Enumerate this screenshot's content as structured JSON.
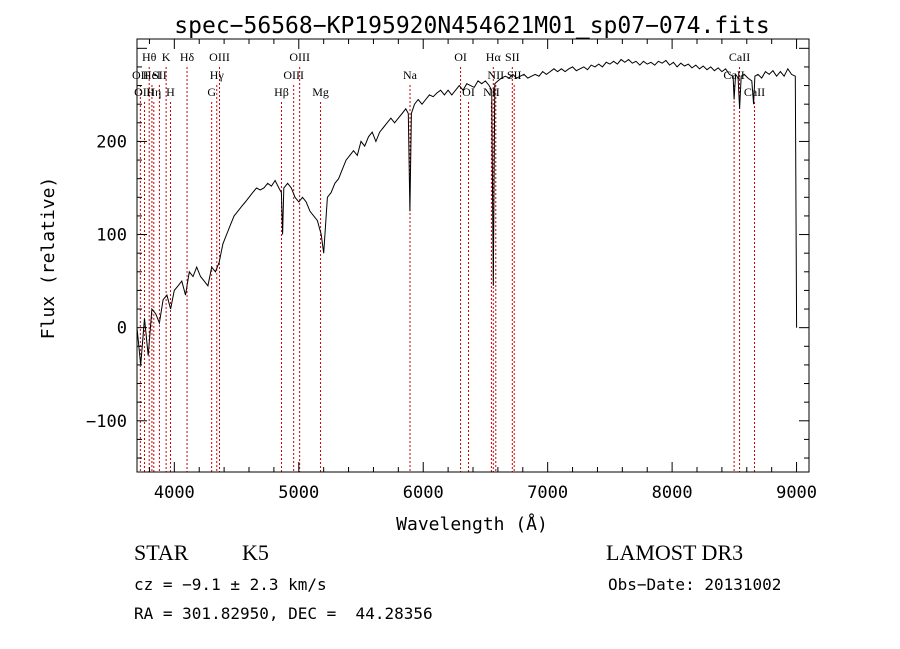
{
  "chart_data": {
    "type": "line",
    "title": "spec−56568−KP195920N454621M01_sp07−074.fits",
    "xlabel": "Wavelength (Å)",
    "ylabel": "Flux (relative)",
    "xlim": [
      3700,
      9100
    ],
    "ylim": [
      -155,
      310
    ],
    "xticks": [
      {
        "value": 4000,
        "label": "4000"
      },
      {
        "value": 5000,
        "label": "5000"
      },
      {
        "value": 6000,
        "label": "6000"
      },
      {
        "value": 7000,
        "label": "7000"
      },
      {
        "value": 8000,
        "label": "8000"
      },
      {
        "value": 9000,
        "label": "9000"
      }
    ],
    "yticks": [
      {
        "value": -100,
        "label": "−100"
      },
      {
        "value": 0,
        "label": "0"
      },
      {
        "value": 100,
        "label": "100"
      },
      {
        "value": 200,
        "label": "200"
      }
    ],
    "line_color": "#000000",
    "marker_color": "#cc0000",
    "series": [
      {
        "values": [
          [
            3700,
            0
          ],
          [
            3730,
            -40
          ],
          [
            3760,
            10
          ],
          [
            3790,
            -30
          ],
          [
            3820,
            20
          ],
          [
            3850,
            15
          ],
          [
            3880,
            5
          ],
          [
            3910,
            30
          ],
          [
            3940,
            35
          ],
          [
            3970,
            20
          ],
          [
            4000,
            40
          ],
          [
            4030,
            45
          ],
          [
            4060,
            50
          ],
          [
            4090,
            35
          ],
          [
            4120,
            60
          ],
          [
            4150,
            55
          ],
          [
            4180,
            65
          ],
          [
            4210,
            55
          ],
          [
            4240,
            50
          ],
          [
            4270,
            45
          ],
          [
            4300,
            65
          ],
          [
            4330,
            60
          ],
          [
            4360,
            70
          ],
          [
            4390,
            90
          ],
          [
            4420,
            100
          ],
          [
            4450,
            110
          ],
          [
            4480,
            120
          ],
          [
            4510,
            125
          ],
          [
            4540,
            130
          ],
          [
            4570,
            135
          ],
          [
            4600,
            140
          ],
          [
            4630,
            145
          ],
          [
            4660,
            150
          ],
          [
            4690,
            148
          ],
          [
            4720,
            150
          ],
          [
            4750,
            155
          ],
          [
            4780,
            152
          ],
          [
            4810,
            158
          ],
          [
            4840,
            150
          ],
          [
            4860,
            145
          ],
          [
            4870,
            100
          ],
          [
            4880,
            150
          ],
          [
            4910,
            155
          ],
          [
            4940,
            150
          ],
          [
            4970,
            140
          ],
          [
            5000,
            135
          ],
          [
            5030,
            140
          ],
          [
            5060,
            135
          ],
          [
            5090,
            125
          ],
          [
            5120,
            120
          ],
          [
            5150,
            115
          ],
          [
            5180,
            100
          ],
          [
            5200,
            80
          ],
          [
            5230,
            140
          ],
          [
            5260,
            145
          ],
          [
            5290,
            155
          ],
          [
            5320,
            160
          ],
          [
            5350,
            170
          ],
          [
            5380,
            180
          ],
          [
            5410,
            185
          ],
          [
            5440,
            190
          ],
          [
            5470,
            185
          ],
          [
            5500,
            200
          ],
          [
            5530,
            195
          ],
          [
            5560,
            205
          ],
          [
            5590,
            210
          ],
          [
            5620,
            200
          ],
          [
            5650,
            210
          ],
          [
            5680,
            215
          ],
          [
            5710,
            220
          ],
          [
            5740,
            225
          ],
          [
            5770,
            220
          ],
          [
            5800,
            225
          ],
          [
            5830,
            230
          ],
          [
            5860,
            235
          ],
          [
            5880,
            230
          ],
          [
            5893,
            125
          ],
          [
            5905,
            230
          ],
          [
            5930,
            240
          ],
          [
            5960,
            245
          ],
          [
            5990,
            240
          ],
          [
            6020,
            245
          ],
          [
            6050,
            250
          ],
          [
            6080,
            248
          ],
          [
            6110,
            252
          ],
          [
            6140,
            255
          ],
          [
            6170,
            250
          ],
          [
            6200,
            255
          ],
          [
            6230,
            250
          ],
          [
            6260,
            255
          ],
          [
            6290,
            260
          ],
          [
            6320,
            255
          ],
          [
            6350,
            262
          ],
          [
            6380,
            260
          ],
          [
            6410,
            258
          ],
          [
            6440,
            265
          ],
          [
            6470,
            262
          ],
          [
            6500,
            265
          ],
          [
            6530,
            260
          ],
          [
            6550,
            255
          ],
          [
            6563,
            45
          ],
          [
            6575,
            262
          ],
          [
            6600,
            265
          ],
          [
            6630,
            268
          ],
          [
            6660,
            270
          ],
          [
            6690,
            268
          ],
          [
            6720,
            272
          ],
          [
            6750,
            268
          ],
          [
            6780,
            270
          ],
          [
            6810,
            272
          ],
          [
            6840,
            268
          ],
          [
            6870,
            270
          ],
          [
            6900,
            272
          ],
          [
            6930,
            270
          ],
          [
            6960,
            275
          ],
          [
            6990,
            272
          ],
          [
            7020,
            275
          ],
          [
            7050,
            278
          ],
          [
            7080,
            275
          ],
          [
            7110,
            278
          ],
          [
            7140,
            275
          ],
          [
            7170,
            278
          ],
          [
            7200,
            280
          ],
          [
            7230,
            276
          ],
          [
            7260,
            278
          ],
          [
            7290,
            280
          ],
          [
            7320,
            277
          ],
          [
            7350,
            282
          ],
          [
            7380,
            280
          ],
          [
            7410,
            283
          ],
          [
            7440,
            280
          ],
          [
            7470,
            285
          ],
          [
            7500,
            283
          ],
          [
            7530,
            286
          ],
          [
            7560,
            283
          ],
          [
            7590,
            288
          ],
          [
            7620,
            285
          ],
          [
            7650,
            288
          ],
          [
            7680,
            284
          ],
          [
            7710,
            286
          ],
          [
            7740,
            282
          ],
          [
            7770,
            286
          ],
          [
            7800,
            283
          ],
          [
            7830,
            285
          ],
          [
            7860,
            282
          ],
          [
            7890,
            286
          ],
          [
            7920,
            284
          ],
          [
            7950,
            287
          ],
          [
            7980,
            282
          ],
          [
            8010,
            285
          ],
          [
            8040,
            280
          ],
          [
            8070,
            284
          ],
          [
            8100,
            281
          ],
          [
            8130,
            283
          ],
          [
            8160,
            279
          ],
          [
            8190,
            282
          ],
          [
            8220,
            278
          ],
          [
            8250,
            281
          ],
          [
            8280,
            277
          ],
          [
            8310,
            280
          ],
          [
            8340,
            276
          ],
          [
            8370,
            279
          ],
          [
            8400,
            275
          ],
          [
            8430,
            278
          ],
          [
            8460,
            272
          ],
          [
            8490,
            270
          ],
          [
            8498,
            245
          ],
          [
            8510,
            272
          ],
          [
            8530,
            268
          ],
          [
            8542,
            235
          ],
          [
            8555,
            270
          ],
          [
            8580,
            272
          ],
          [
            8610,
            268
          ],
          [
            8640,
            265
          ],
          [
            8655,
            240
          ],
          [
            8665,
            270
          ],
          [
            8690,
            272
          ],
          [
            8720,
            268
          ],
          [
            8750,
            275
          ],
          [
            8780,
            272
          ],
          [
            8810,
            276
          ],
          [
            8840,
            270
          ],
          [
            8870,
            275
          ],
          [
            8900,
            270
          ],
          [
            8930,
            278
          ],
          [
            8960,
            272
          ],
          [
            8990,
            270
          ],
          [
            9000,
            0
          ]
        ]
      }
    ],
    "line_markers": [
      {
        "label": "OII",
        "x": 3727,
        "row": 2
      },
      {
        "label": "OIII",
        "x": 3760,
        "row": 3
      },
      {
        "label": "Hθ",
        "x": 3798,
        "row": 1
      },
      {
        "label": "HeI",
        "x": 3820,
        "row": 2
      },
      {
        "label": "Hη",
        "x": 3835,
        "row": 3
      },
      {
        "label": "SII",
        "x": 3880,
        "row": 2
      },
      {
        "label": "K",
        "x": 3934,
        "row": 1
      },
      {
        "label": "H",
        "x": 3969,
        "row": 3
      },
      {
        "label": "Hδ",
        "x": 4102,
        "row": 1
      },
      {
        "label": "G",
        "x": 4300,
        "row": 3
      },
      {
        "label": "Hγ",
        "x": 4341,
        "row": 2
      },
      {
        "label": "OIII",
        "x": 4363,
        "row": 1
      },
      {
        "label": "Hβ",
        "x": 4861,
        "row": 3
      },
      {
        "label": "OIII",
        "x": 4959,
        "row": 2
      },
      {
        "label": "OIII",
        "x": 5007,
        "row": 1
      },
      {
        "label": "Mg",
        "x": 5175,
        "row": 3
      },
      {
        "label": "Na",
        "x": 5894,
        "row": 2
      },
      {
        "label": "OI",
        "x": 6300,
        "row": 1
      },
      {
        "label": "OI",
        "x": 6364,
        "row": 3
      },
      {
        "label": "NII",
        "x": 6548,
        "row": 3
      },
      {
        "label": "Hα",
        "x": 6563,
        "row": 1
      },
      {
        "label": "NII",
        "x": 6583,
        "row": 2
      },
      {
        "label": "SII",
        "x": 6716,
        "row": 1
      },
      {
        "label": "SII",
        "x": 6731,
        "row": 2
      },
      {
        "label": "CaII",
        "x": 8498,
        "row": 2
      },
      {
        "label": "CaII",
        "x": 8542,
        "row": 1
      },
      {
        "label": "CaII",
        "x": 8662,
        "row": 3
      }
    ]
  },
  "info": {
    "object_class": "STAR",
    "subclass": "K5",
    "survey": "LAMOST DR3",
    "redshift_text": "cz = −9.1 ± 2.3 km/s",
    "obs_date": "Obs−Date: 20131002",
    "coords": "RA = 301.82950, DEC =  44.28356"
  }
}
